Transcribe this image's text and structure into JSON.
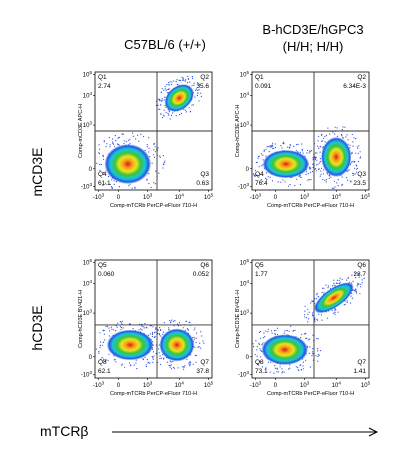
{
  "columns": [
    {
      "lines": [
        "C57BL/6 (+/+)"
      ]
    },
    {
      "lines": [
        "B-hCD3E/hGPC3",
        "(H/H; H/H)"
      ]
    }
  ],
  "rows": [
    "mCD3E",
    "hCD3E"
  ],
  "bottom_axis_label": "mTCRβ",
  "y_ticks": [
    {
      "base": "10",
      "sup": "5"
    },
    {
      "base": "10",
      "sup": "4"
    },
    {
      "base": "10",
      "sup": "3"
    },
    {
      "base": "0",
      "sup": ""
    },
    {
      "base": "-10",
      "sup": "3"
    }
  ],
  "x_ticks": [
    {
      "base": "-10",
      "sup": "3"
    },
    {
      "base": "0",
      "sup": ""
    },
    {
      "base": "10",
      "sup": "3"
    },
    {
      "base": "10",
      "sup": "4"
    },
    {
      "base": "10",
      "sup": "5"
    }
  ],
  "panels": [
    {
      "y_label": "Comp-mCD3E APC-H",
      "x_label": "Comp-mTCRb PerCP-eFluor 710-H",
      "quadrants": [
        {
          "name": "Q1",
          "value": "2.74"
        },
        {
          "name": "Q2",
          "value": "35.6"
        },
        {
          "name": "Q3",
          "value": "0.63"
        },
        {
          "name": "Q4",
          "value": "61.1"
        }
      ]
    },
    {
      "y_label": "Comp-hCD3E APC-H",
      "x_label": "Comp-mTCRb PerCP-eFluor 710-H",
      "quadrants": [
        {
          "name": "Q1",
          "value": "0.091"
        },
        {
          "name": "Q2",
          "value": "6.34E-3"
        },
        {
          "name": "Q3",
          "value": "23.5"
        },
        {
          "name": "Q4",
          "value": "76.4"
        }
      ]
    },
    {
      "y_label": "Comp-hCD3E BV421-H",
      "x_label": "Comp-mTCRb PerCP-eFluor 710-H",
      "quadrants": [
        {
          "name": "Q5",
          "value": "0.060"
        },
        {
          "name": "Q6",
          "value": "0.052"
        },
        {
          "name": "Q7",
          "value": "37.8"
        },
        {
          "name": "Q8",
          "value": "62.1"
        }
      ]
    },
    {
      "y_label": "Comp-hCD3E BV421-H",
      "x_label": "Comp-mTCRb PerCP-eFluor 710-H",
      "quadrants": [
        {
          "name": "Q5",
          "value": "1.77"
        },
        {
          "name": "Q6",
          "value": "23.7"
        },
        {
          "name": "Q7",
          "value": "1.41"
        },
        {
          "name": "Q8",
          "value": "73.1"
        }
      ]
    }
  ]
}
